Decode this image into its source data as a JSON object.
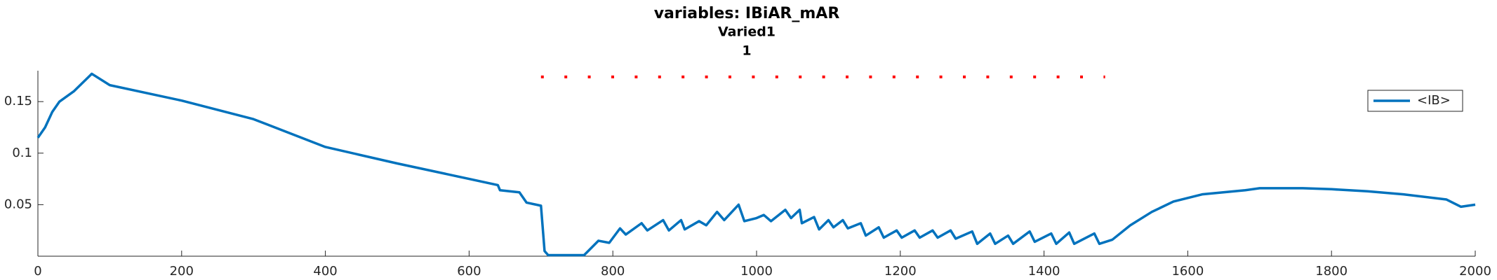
{
  "chart_data": {
    "type": "line",
    "title": "variables: IBiAR_mAR",
    "subtitle": [
      "Varied1",
      "1"
    ],
    "x": [
      0,
      10,
      20,
      30,
      50,
      75,
      100,
      200,
      300,
      400,
      500,
      600,
      640,
      643,
      670,
      680,
      700,
      705,
      710,
      760,
      780,
      795,
      810,
      818,
      840,
      848,
      870,
      878,
      895,
      900,
      920,
      930,
      945,
      955,
      975,
      983,
      1000,
      1010,
      1020,
      1040,
      1048,
      1060,
      1063,
      1080,
      1087,
      1100,
      1107,
      1120,
      1127,
      1145,
      1152,
      1170,
      1177,
      1195,
      1202,
      1220,
      1227,
      1245,
      1252,
      1270,
      1277,
      1300,
      1307,
      1325,
      1332,
      1350,
      1357,
      1380,
      1387,
      1410,
      1417,
      1435,
      1442,
      1470,
      1477,
      1495,
      1520,
      1550,
      1580,
      1620,
      1680,
      1700,
      1760,
      1800,
      1850,
      1900,
      1960,
      1980,
      2000
    ],
    "series": [
      {
        "name": "<IB>",
        "color": "#0072bd",
        "values": [
          0.115,
          0.125,
          0.14,
          0.15,
          0.16,
          0.177,
          0.166,
          0.151,
          0.133,
          0.106,
          0.09,
          0.075,
          0.069,
          0.064,
          0.062,
          0.052,
          0.049,
          0.005,
          0.001,
          0.001,
          0.015,
          0.013,
          0.027,
          0.021,
          0.032,
          0.025,
          0.035,
          0.025,
          0.035,
          0.026,
          0.034,
          0.03,
          0.043,
          0.035,
          0.05,
          0.034,
          0.037,
          0.04,
          0.034,
          0.045,
          0.037,
          0.045,
          0.032,
          0.038,
          0.026,
          0.035,
          0.028,
          0.035,
          0.027,
          0.032,
          0.02,
          0.028,
          0.018,
          0.025,
          0.018,
          0.025,
          0.018,
          0.025,
          0.018,
          0.025,
          0.017,
          0.024,
          0.012,
          0.022,
          0.012,
          0.02,
          0.012,
          0.024,
          0.014,
          0.022,
          0.012,
          0.023,
          0.012,
          0.022,
          0.012,
          0.016,
          0.03,
          0.043,
          0.053,
          0.06,
          0.064,
          0.066,
          0.066,
          0.065,
          0.063,
          0.06,
          0.055,
          0.048,
          0.05
        ]
      }
    ],
    "reference_line": {
      "x": [
        700,
        1485
      ],
      "y": 0.174,
      "color": "#ff0000",
      "style": "dotted"
    },
    "xlim": [
      0,
      2000
    ],
    "ylim": [
      0,
      0.18
    ],
    "xticks": [
      0,
      200,
      400,
      600,
      800,
      1000,
      1200,
      1400,
      1600,
      1800,
      2000
    ],
    "yticks": [
      0.05,
      0.1,
      0.15
    ],
    "legend": "top-right"
  }
}
